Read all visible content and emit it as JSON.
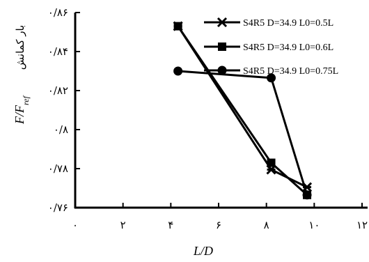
{
  "chart_data": {
    "type": "line",
    "xlabel": "L/D",
    "ylabel_math": "F/F",
    "ylabel_sub": "ref",
    "ylabel_fa": "بار کمانش",
    "xlim": [
      0,
      12
    ],
    "ylim": [
      0.76,
      0.86
    ],
    "x_ticks": [
      0,
      2,
      4,
      6,
      8,
      10,
      12
    ],
    "x_tick_labels": [
      "۰",
      "۲",
      "۴",
      "۶",
      "۸",
      "۱۰",
      "۱۲"
    ],
    "y_ticks": [
      0.76,
      0.78,
      0.8,
      0.82,
      0.84,
      0.86
    ],
    "y_tick_labels": [
      "۰/۷۶",
      "۰/۷۸",
      "۰/۸",
      "۰/۸۲",
      "۰/۸۴",
      "۰/۸۶"
    ],
    "grid": false,
    "legend_position": "top-right",
    "series": [
      {
        "name": "S4R5 D=34.9 L0=0.5L",
        "marker": "x",
        "x": [
          4.3,
          8.2,
          9.7
        ],
        "y": [
          0.853,
          0.7795,
          0.7705
        ]
      },
      {
        "name": "S4R5 D=34.9 L0=0.6L",
        "marker": "square",
        "x": [
          4.3,
          8.2,
          9.7
        ],
        "y": [
          0.853,
          0.783,
          0.7665
        ]
      },
      {
        "name": "S4R5 D=34.9 L0=0.75L",
        "marker": "circle",
        "x": [
          4.3,
          8.2,
          9.7
        ],
        "y": [
          0.83,
          0.8265,
          0.7665
        ]
      }
    ]
  }
}
